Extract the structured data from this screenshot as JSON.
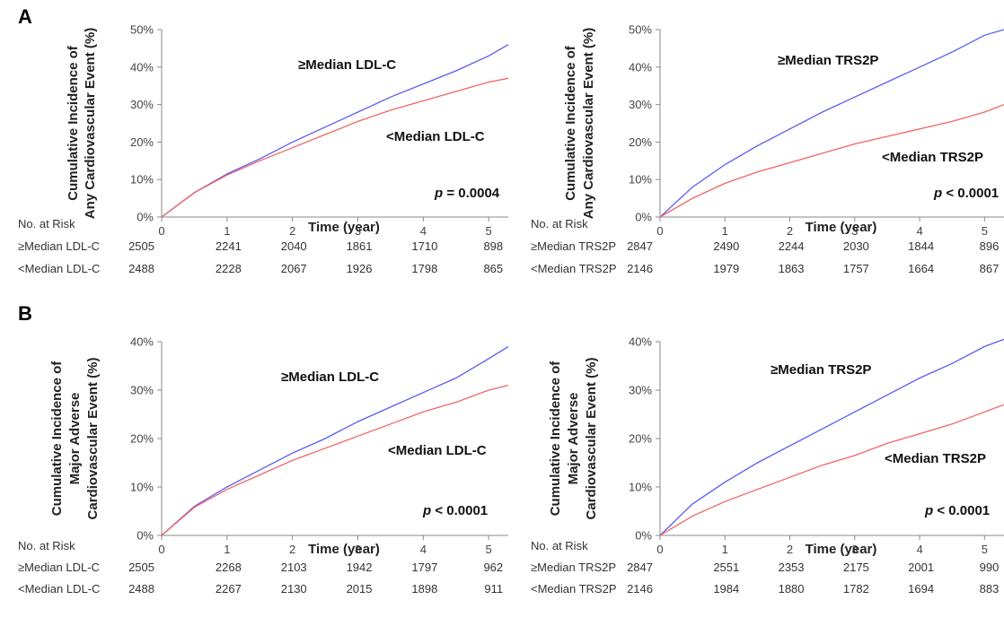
{
  "figure": {
    "panel_letters": [
      "A",
      "B"
    ],
    "risk_header": "No. at Risk",
    "x_title": "Time (year)"
  },
  "chart_data": [
    {
      "type": "line",
      "panel": "A",
      "ylabel_lines": [
        "Cumulative Incidence of",
        "Any Cardiovascular Event (%)"
      ],
      "xlabel": "Time (year)",
      "xlim": [
        0,
        5.3
      ],
      "ylim": [
        0,
        0.5
      ],
      "x_ticks": [
        "0",
        "1",
        "2",
        "3",
        "4",
        "5"
      ],
      "y_ticks": [
        "0%",
        "10%",
        "20%",
        "30%",
        "40%",
        "50%"
      ],
      "annotations": [
        "≥Median LDL-C",
        "<Median LDL-C"
      ],
      "p_label": "p",
      "p_value": "= 0.0004",
      "series": [
        {
          "name": "≥Median LDL-C",
          "color": "#5b5bf0",
          "x": [
            0,
            0.5,
            1,
            1.5,
            2,
            2.5,
            3,
            3.5,
            4,
            4.5,
            5,
            5.3
          ],
          "y": [
            0,
            0.065,
            0.115,
            0.155,
            0.2,
            0.24,
            0.28,
            0.32,
            0.355,
            0.39,
            0.43,
            0.46
          ]
        },
        {
          "name": "<Median LDL-C",
          "color": "#f06464",
          "x": [
            0,
            0.5,
            1,
            1.5,
            2,
            2.5,
            3,
            3.5,
            4,
            4.5,
            5,
            5.3
          ],
          "y": [
            0,
            0.065,
            0.112,
            0.15,
            0.185,
            0.22,
            0.255,
            0.285,
            0.31,
            0.335,
            0.36,
            0.37
          ]
        }
      ],
      "risk_table": {
        "rows": [
          {
            "label": "≥Median LDL-C",
            "values": [
              "2505",
              "2241",
              "2040",
              "1861",
              "1710",
              "898"
            ]
          },
          {
            "label": "<Median LDL-C",
            "values": [
              "2488",
              "2228",
              "2067",
              "1926",
              "1798",
              "865"
            ]
          }
        ]
      }
    },
    {
      "type": "line",
      "panel": "A",
      "ylabel_lines": [
        "Cumulative Incidence of",
        "Any Cardiovascular Event (%)"
      ],
      "xlabel": "Time (year)",
      "xlim": [
        0,
        5.3
      ],
      "ylim": [
        0,
        0.5
      ],
      "x_ticks": [
        "0",
        "1",
        "2",
        "3",
        "4",
        "5"
      ],
      "y_ticks": [
        "0%",
        "10%",
        "20%",
        "30%",
        "40%",
        "50%"
      ],
      "annotations": [
        "≥Median TRS2P",
        "<Median TRS2P"
      ],
      "p_label": "p",
      "p_value": "< 0.0001",
      "series": [
        {
          "name": "≥Median TRS2P",
          "color": "#5b5bf0",
          "x": [
            0,
            0.5,
            1,
            1.5,
            2,
            2.5,
            3,
            3.5,
            4,
            4.5,
            5,
            5.3
          ],
          "y": [
            0,
            0.08,
            0.14,
            0.19,
            0.235,
            0.28,
            0.32,
            0.36,
            0.4,
            0.44,
            0.485,
            0.5
          ]
        },
        {
          "name": "<Median TRS2P",
          "color": "#f06464",
          "x": [
            0,
            0.5,
            1,
            1.5,
            2,
            2.5,
            3,
            3.5,
            4,
            4.5,
            5,
            5.3
          ],
          "y": [
            0,
            0.05,
            0.09,
            0.12,
            0.145,
            0.17,
            0.195,
            0.215,
            0.235,
            0.255,
            0.28,
            0.3
          ]
        }
      ],
      "risk_table": {
        "rows": [
          {
            "label": "≥Median TRS2P",
            "values": [
              "2847",
              "2490",
              "2244",
              "2030",
              "1844",
              "896"
            ]
          },
          {
            "label": "<Median TRS2P",
            "values": [
              "2146",
              "1979",
              "1863",
              "1757",
              "1664",
              "867"
            ]
          }
        ]
      }
    },
    {
      "type": "line",
      "panel": "B",
      "ylabel_lines": [
        "Cumulative Incidence of",
        "Major Adverse",
        "Cardiovascular Event (%)"
      ],
      "xlabel": "Time (year)",
      "xlim": [
        0,
        5.3
      ],
      "ylim": [
        0,
        0.4
      ],
      "x_ticks": [
        "0",
        "1",
        "2",
        "3",
        "4",
        "5"
      ],
      "y_ticks": [
        "0%",
        "10%",
        "20%",
        "30%",
        "40%"
      ],
      "annotations": [
        "≥Median LDL-C",
        "<Median LDL-C"
      ],
      "p_label": "p",
      "p_value": "< 0.0001",
      "series": [
        {
          "name": "≥Median LDL-C",
          "color": "#5b5bf0",
          "x": [
            0,
            0.5,
            1,
            1.5,
            2,
            2.5,
            3,
            3.5,
            4,
            4.5,
            5,
            5.3
          ],
          "y": [
            0,
            0.06,
            0.1,
            0.135,
            0.17,
            0.2,
            0.235,
            0.265,
            0.295,
            0.325,
            0.365,
            0.39
          ]
        },
        {
          "name": "<Median LDL-C",
          "color": "#f06464",
          "x": [
            0,
            0.5,
            1,
            1.5,
            2,
            2.5,
            3,
            3.5,
            4,
            4.5,
            5,
            5.3
          ],
          "y": [
            0,
            0.058,
            0.095,
            0.125,
            0.155,
            0.18,
            0.205,
            0.23,
            0.255,
            0.275,
            0.3,
            0.31
          ]
        }
      ],
      "risk_table": {
        "rows": [
          {
            "label": "≥Median LDL-C",
            "values": [
              "2505",
              "2268",
              "2103",
              "1942",
              "1797",
              "962"
            ]
          },
          {
            "label": "<Median LDL-C",
            "values": [
              "2488",
              "2267",
              "2130",
              "2015",
              "1898",
              "911"
            ]
          }
        ]
      }
    },
    {
      "type": "line",
      "panel": "B",
      "ylabel_lines": [
        "Cumulative Incidence of",
        "Major Adverse",
        "Cardiovascular Event (%)"
      ],
      "xlabel": "Time (year)",
      "xlim": [
        0,
        5.3
      ],
      "ylim": [
        0,
        0.4
      ],
      "x_ticks": [
        "0",
        "1",
        "2",
        "3",
        "4",
        "5"
      ],
      "y_ticks": [
        "0%",
        "10%",
        "20%",
        "30%",
        "40%"
      ],
      "annotations": [
        "≥Median TRS2P",
        "<Median TRS2P"
      ],
      "p_label": "p",
      "p_value": "< 0.0001",
      "series": [
        {
          "name": "≥Median TRS2P",
          "color": "#5b5bf0",
          "x": [
            0,
            0.5,
            1,
            1.5,
            2,
            2.5,
            3,
            3.5,
            4,
            4.5,
            5,
            5.3
          ],
          "y": [
            0,
            0.065,
            0.11,
            0.15,
            0.185,
            0.22,
            0.255,
            0.29,
            0.325,
            0.355,
            0.39,
            0.405
          ]
        },
        {
          "name": "<Median TRS2P",
          "color": "#f06464",
          "x": [
            0,
            0.5,
            1,
            1.5,
            2,
            2.5,
            3,
            3.5,
            4,
            4.5,
            5,
            5.3
          ],
          "y": [
            0,
            0.04,
            0.07,
            0.095,
            0.12,
            0.145,
            0.165,
            0.19,
            0.21,
            0.23,
            0.255,
            0.27
          ]
        }
      ],
      "risk_table": {
        "rows": [
          {
            "label": "≥Median TRS2P",
            "values": [
              "2847",
              "2551",
              "2353",
              "2175",
              "2001",
              "990"
            ]
          },
          {
            "label": "<Median TRS2P",
            "values": [
              "2146",
              "1984",
              "1880",
              "1782",
              "1694",
              "883"
            ]
          }
        ]
      }
    }
  ]
}
